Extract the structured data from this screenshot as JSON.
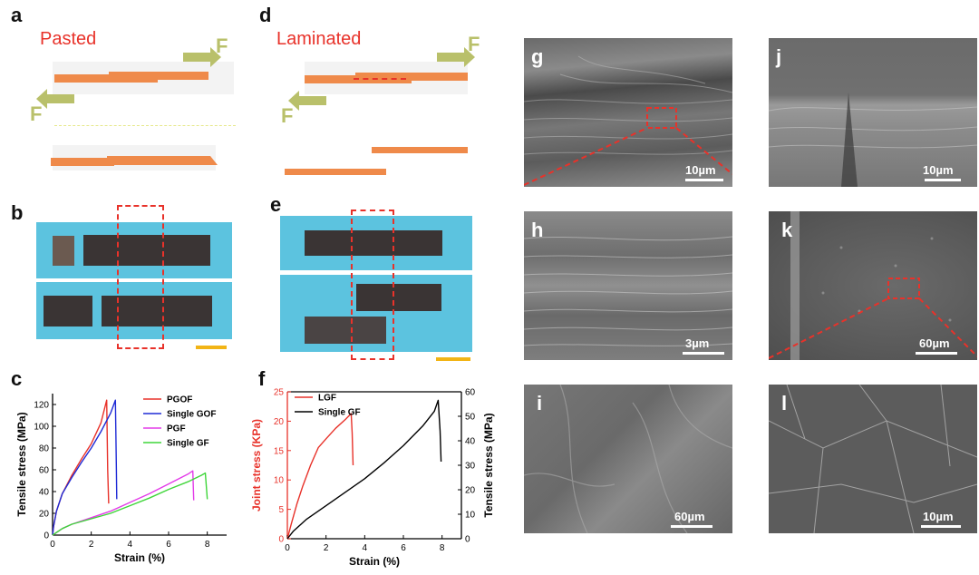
{
  "panels": {
    "a": {
      "label": "a",
      "title": "Pasted",
      "force_label": "F"
    },
    "b": {
      "label": "b"
    },
    "c": {
      "label": "c"
    },
    "d": {
      "label": "d",
      "title": "Laminated",
      "force_label": "F"
    },
    "e": {
      "label": "e"
    },
    "f": {
      "label": "f"
    },
    "g": {
      "label": "g",
      "scale": "10µm"
    },
    "h": {
      "label": "h",
      "scale": "3µm"
    },
    "i": {
      "label": "i",
      "scale": "60µm"
    },
    "j": {
      "label": "j",
      "scale": "10µm"
    },
    "k": {
      "label": "k",
      "scale": "60µm"
    },
    "l": {
      "label": "l",
      "scale": "10µm"
    }
  },
  "colors": {
    "red": "#e8322a",
    "blue": "#1f2bd6",
    "magenta": "#e33be8",
    "green": "#3fd63a",
    "black": "#000000",
    "strip": "#ef8a4a",
    "arrow": "#b9c06a",
    "photo_bg": "#5cc3df",
    "scale_bar": "#f2b415"
  },
  "chart_data": [
    {
      "type": "line",
      "panel": "c",
      "xlabel": "Strain (%)",
      "ylabel": "Tensile stress (MPa)",
      "xlim": [
        0,
        9
      ],
      "ylim": [
        0,
        130
      ],
      "xticks": [
        0,
        2,
        4,
        6,
        8
      ],
      "yticks": [
        0,
        20,
        40,
        60,
        80,
        100,
        120
      ],
      "legend_position": "top-right",
      "series": [
        {
          "name": "PGOF",
          "color": "#e8322a",
          "x": [
            0,
            0.05,
            0.2,
            0.5,
            1.0,
            1.5,
            2.0,
            2.5,
            2.8,
            2.85,
            2.9
          ],
          "y": [
            0,
            8,
            22,
            38,
            55,
            70,
            84,
            103,
            124,
            60,
            29
          ]
        },
        {
          "name": "Single GOF",
          "color": "#1f2bd6",
          "x": [
            0,
            0.05,
            0.2,
            0.5,
            1.0,
            1.5,
            2.0,
            2.5,
            3.0,
            3.25,
            3.3,
            3.32
          ],
          "y": [
            0,
            8,
            22,
            38,
            53,
            67,
            80,
            95,
            112,
            124,
            60,
            33
          ]
        },
        {
          "name": "PGF",
          "color": "#e33be8",
          "x": [
            0,
            0.5,
            1,
            2,
            3,
            4,
            5,
            6,
            7,
            7.25,
            7.3
          ],
          "y": [
            0,
            6,
            10,
            16,
            22,
            30,
            38,
            47,
            56,
            59,
            32
          ]
        },
        {
          "name": "Single GF",
          "color": "#3fd63a",
          "x": [
            0,
            0.5,
            1,
            2,
            3,
            4,
            5,
            6,
            7,
            7.7,
            7.9,
            8.0
          ],
          "y": [
            0,
            6,
            10,
            15,
            20,
            27,
            34,
            42,
            49,
            55,
            57,
            33
          ]
        }
      ]
    },
    {
      "type": "line",
      "panel": "f",
      "xlabel": "Strain (%)",
      "ylabel": "Joint stress (KPa)",
      "ylabel_right": "Tensile stress (MPa)",
      "xlim": [
        0,
        9
      ],
      "ylim": [
        0,
        25
      ],
      "ylim_right": [
        0,
        60
      ],
      "xticks": [
        0,
        2,
        4,
        6,
        8
      ],
      "yticks": [
        0,
        5,
        10,
        15,
        20,
        25
      ],
      "yticks_right": [
        0,
        10,
        20,
        30,
        40,
        50,
        60
      ],
      "legend_position": "top-left",
      "series": [
        {
          "name": "LGF",
          "color": "#e8322a",
          "axis": "left",
          "x": [
            0,
            0.2,
            0.5,
            0.8,
            1.2,
            1.6,
            2.0,
            2.5,
            3.0,
            3.3,
            3.35,
            3.4
          ],
          "y": [
            0,
            2.5,
            6,
            9,
            12.5,
            15.5,
            17,
            18.8,
            20.3,
            21.3,
            18,
            12.5
          ]
        },
        {
          "name": "Single GF",
          "color": "#000000",
          "axis": "right",
          "x": [
            0,
            0.3,
            1,
            2,
            3,
            4,
            5,
            6,
            7,
            7.6,
            7.8,
            7.9,
            7.95
          ],
          "y": [
            0,
            3,
            8,
            13.5,
            19,
            24.5,
            31,
            38,
            46,
            52,
            56.5,
            44,
            31.5
          ]
        }
      ]
    }
  ]
}
